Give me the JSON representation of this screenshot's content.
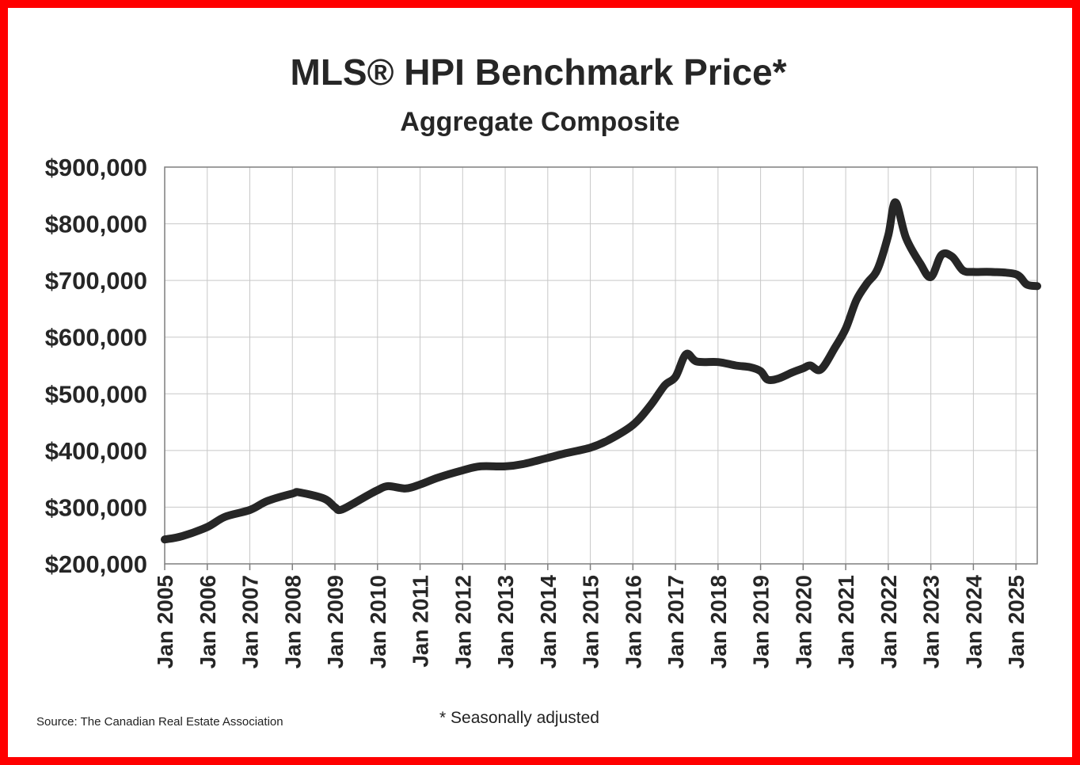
{
  "title": "MLS® HPI Benchmark Price*",
  "subtitle": "Aggregate Composite",
  "source": "Source: The Canadian Real Estate Association",
  "footnote": "* Seasonally adjusted",
  "colors": {
    "line": "#262626",
    "grid": "#c8c8c8",
    "frame": "#ff0000",
    "axis": "#7f7f7f"
  },
  "chart_data": {
    "type": "line",
    "title": "MLS® HPI Benchmark Price*",
    "subtitle": "Aggregate Composite",
    "xlabel": "",
    "ylabel": "",
    "ylim": [
      200000,
      900000
    ],
    "y_ticks": [
      200000,
      300000,
      400000,
      500000,
      600000,
      700000,
      800000,
      900000
    ],
    "y_tick_labels": [
      "$200,000",
      "$300,000",
      "$400,000",
      "$500,000",
      "$600,000",
      "$700,000",
      "$800,000",
      "$900,000"
    ],
    "x_ticks": [
      2005,
      2006,
      2007,
      2008,
      2009,
      2010,
      2011,
      2012,
      2013,
      2014,
      2015,
      2016,
      2017,
      2018,
      2019,
      2020,
      2021,
      2022,
      2023,
      2024,
      2025
    ],
    "x_tick_labels": [
      "Jan 2005",
      "Jan 2006",
      "Jan 2007",
      "Jan 2008",
      "Jan 2009",
      "Jan 2010",
      "Jan 2011",
      "Jan 2012",
      "Jan 2013",
      "Jan 2014",
      "Jan 2015",
      "Jan 2016",
      "Jan 2017",
      "Jan 2018",
      "Jan 2019",
      "Jan 2020",
      "Jan 2021",
      "Jan 2022",
      "Jan 2023",
      "Jan 2024",
      "Jan 2025"
    ],
    "xlim": [
      "2005-01",
      "2025-07"
    ],
    "grid": true,
    "legend": "none",
    "series": [
      {
        "x": [
          "2005-01",
          "2005-06",
          "2006-01",
          "2006-06",
          "2007-01",
          "2007-06",
          "2008-01",
          "2008-03",
          "2008-10",
          "2009-01",
          "2009-03",
          "2009-10",
          "2010-01",
          "2010-04",
          "2010-09",
          "2011-01",
          "2011-06",
          "2012-01",
          "2012-06",
          "2013-01",
          "2013-06",
          "2014-01",
          "2014-06",
          "2015-01",
          "2015-06",
          "2016-01",
          "2016-06",
          "2016-10",
          "2017-01",
          "2017-04",
          "2017-07",
          "2018-01",
          "2018-06",
          "2018-10",
          "2019-01",
          "2019-03",
          "2019-06",
          "2019-10",
          "2020-01",
          "2020-03",
          "2020-06",
          "2020-10",
          "2021-01",
          "2021-04",
          "2021-07",
          "2021-10",
          "2022-01",
          "2022-03",
          "2022-06",
          "2022-10",
          "2023-01",
          "2023-04",
          "2023-07",
          "2023-10",
          "2024-01",
          "2024-06",
          "2025-01",
          "2025-04",
          "2025-07"
        ],
        "y": [
          243000,
          249000,
          265000,
          283000,
          295000,
          311000,
          324000,
          326000,
          315000,
          300000,
          296000,
          320000,
          330000,
          337000,
          333000,
          340000,
          352000,
          365000,
          372000,
          372000,
          376000,
          387000,
          395000,
          405000,
          418000,
          445000,
          480000,
          515000,
          530000,
          570000,
          557000,
          556000,
          550000,
          547000,
          540000,
          525000,
          527000,
          538000,
          545000,
          550000,
          543000,
          582000,
          615000,
          665000,
          695000,
          720000,
          780000,
          838000,
          775000,
          730000,
          706000,
          745000,
          742000,
          718000,
          715000,
          715000,
          711000,
          693000,
          690000
        ]
      }
    ]
  }
}
